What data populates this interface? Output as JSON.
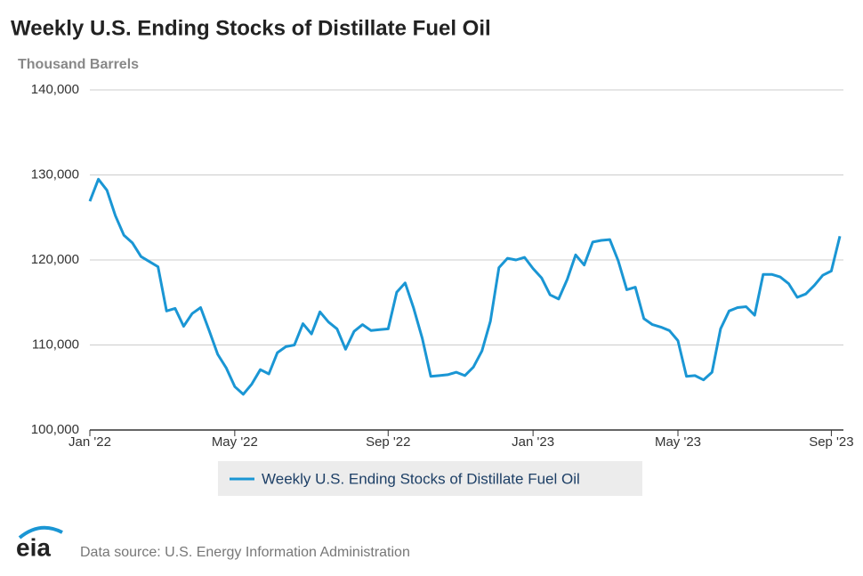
{
  "chart_data": {
    "type": "line",
    "title": "Weekly U.S. Ending Stocks of Distillate Fuel Oil",
    "subtitle": "Thousand Barrels",
    "categories": [
      "Jan '22",
      null,
      null,
      null,
      null,
      null,
      null,
      null,
      null,
      null,
      null,
      null,
      null,
      null,
      null,
      null,
      null,
      "May '22",
      null,
      null,
      null,
      null,
      null,
      null,
      null,
      null,
      null,
      null,
      null,
      null,
      null,
      null,
      null,
      null,
      null,
      "Sep '22",
      null,
      null,
      null,
      null,
      null,
      null,
      null,
      null,
      null,
      null,
      null,
      null,
      null,
      null,
      null,
      null,
      "Jan '23",
      null,
      null,
      null,
      null,
      null,
      null,
      null,
      null,
      null,
      null,
      null,
      null,
      null,
      null,
      null,
      null,
      "May '23",
      null,
      null,
      null,
      null,
      null,
      null,
      null,
      null,
      null,
      null,
      null,
      null,
      null,
      null,
      null,
      null,
      null,
      "Sep '23",
      null
    ],
    "series": [
      {
        "name": "Weekly U.S. Ending Stocks of Distillate Fuel Oil",
        "color": "#1a96d4",
        "values": [
          126900,
          129500,
          128200,
          125200,
          122900,
          122000,
          120400,
          119800,
          119200,
          114000,
          114300,
          112200,
          113700,
          114400,
          111700,
          108900,
          107300,
          105100,
          104200,
          105400,
          107100,
          106600,
          109100,
          109800,
          110000,
          112500,
          111300,
          113900,
          112700,
          111900,
          109500,
          111600,
          112400,
          111700,
          111800,
          111900,
          116200,
          117300,
          114300,
          110800,
          106300,
          106400,
          106500,
          106800,
          106400,
          107400,
          109300,
          112800,
          119100,
          120200,
          120000,
          120300,
          119000,
          117900,
          115900,
          115400,
          117700,
          120600,
          119400,
          122100,
          122300,
          122400,
          119900,
          116500,
          116800,
          113100,
          112400,
          112100,
          111700,
          110500,
          106300,
          106400,
          105900,
          106800,
          111900,
          114000,
          114400,
          114500,
          113500,
          118300,
          118300,
          118000,
          117200,
          115600,
          116000,
          117000,
          118200,
          118700,
          122800
        ]
      }
    ],
    "ylim": [
      100000,
      140000
    ],
    "yticks": [
      {
        "value": 100000,
        "label": "100,000"
      },
      {
        "value": 110000,
        "label": "110,000"
      },
      {
        "value": 120000,
        "label": "120,000"
      },
      {
        "value": 130000,
        "label": "130,000"
      },
      {
        "value": 140000,
        "label": "140,000"
      }
    ],
    "grid": true,
    "legend": "bottom",
    "logo": "eia",
    "source": "Data source: U.S. Energy Information Administration"
  }
}
